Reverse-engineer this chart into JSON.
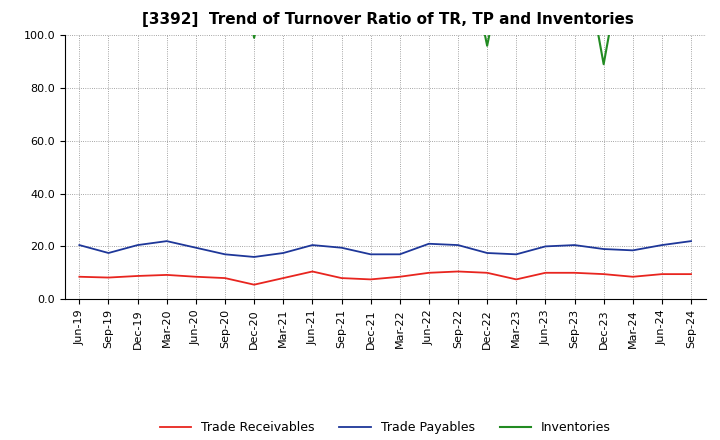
{
  "title": "[3392]  Trend of Turnover Ratio of TR, TP and Inventories",
  "xlabels": [
    "Jun-19",
    "Sep-19",
    "Dec-19",
    "Mar-20",
    "Jun-20",
    "Sep-20",
    "Dec-20",
    "Mar-21",
    "Jun-21",
    "Sep-21",
    "Dec-21",
    "Mar-22",
    "Jun-22",
    "Sep-22",
    "Dec-22",
    "Mar-23",
    "Jun-23",
    "Sep-23",
    "Dec-23",
    "Mar-24",
    "Jun-24",
    "Sep-24"
  ],
  "trade_receivables": [
    8.5,
    8.2,
    8.8,
    9.2,
    8.5,
    8.0,
    5.5,
    8.0,
    10.5,
    8.0,
    7.5,
    8.5,
    10.0,
    10.5,
    10.0,
    7.5,
    10.0,
    10.0,
    9.5,
    8.5,
    9.5,
    9.5
  ],
  "trade_payables": [
    20.5,
    17.5,
    20.5,
    22.0,
    19.5,
    17.0,
    16.0,
    17.5,
    20.5,
    19.5,
    17.0,
    17.0,
    21.0,
    20.5,
    17.5,
    17.0,
    20.0,
    20.5,
    19.0,
    18.5,
    20.5,
    22.0
  ],
  "inventories": [
    150.0,
    150.0,
    150.0,
    150.0,
    150.0,
    150.0,
    99.0,
    150.0,
    150.0,
    150.0,
    150.0,
    150.0,
    150.0,
    150.0,
    96.0,
    150.0,
    150.0,
    150.0,
    89.0,
    150.0,
    150.0,
    150.0
  ],
  "ylim": [
    0.0,
    100.0
  ],
  "yticks": [
    0.0,
    20.0,
    40.0,
    60.0,
    80.0,
    100.0
  ],
  "color_tr": "#e8251f",
  "color_tp": "#1e3799",
  "color_inv": "#228b22",
  "legend_labels": [
    "Trade Receivables",
    "Trade Payables",
    "Inventories"
  ],
  "bg_color": "#ffffff",
  "grid_color": "#aaaaaa",
  "title_fontsize": 11,
  "axis_fontsize": 8,
  "legend_fontsize": 9
}
